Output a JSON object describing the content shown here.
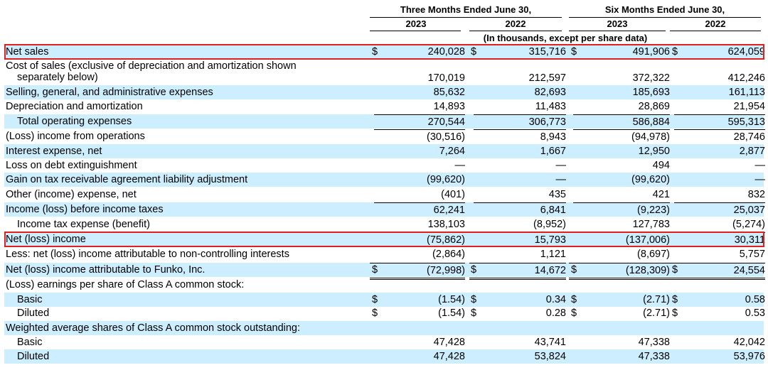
{
  "header": {
    "three_months": "Three Months Ended June 30,",
    "six_months": "Six Months Ended June 30,",
    "years": [
      "2023",
      "2022",
      "2023",
      "2022"
    ],
    "units_note": "(In thousands, except per share data)"
  },
  "rows": [
    {
      "label": "Net sales",
      "values": [
        "240,028",
        "315,716",
        "491,906",
        "624,059"
      ],
      "dollar": [
        "$",
        "$",
        "$",
        "$"
      ]
    },
    {
      "label_line1": "Cost of sales (exclusive of depreciation and amortization shown",
      "label_line2": "separately below)",
      "values": [
        "170,019",
        "212,597",
        "372,322",
        "412,246"
      ]
    },
    {
      "label": "Selling, general, and administrative expenses",
      "values": [
        "85,632",
        "82,693",
        "185,693",
        "161,113"
      ]
    },
    {
      "label": "Depreciation and amortization",
      "values": [
        "14,893",
        "11,483",
        "28,869",
        "21,954"
      ]
    },
    {
      "label": "Total operating expenses",
      "values": [
        "270,544",
        "306,773",
        "586,884",
        "595,313"
      ]
    },
    {
      "label": "(Loss) income from operations",
      "values": [
        "(30,516)",
        "8,943",
        "(94,978)",
        "28,746"
      ]
    },
    {
      "label": "Interest expense, net",
      "values": [
        "7,264",
        "1,667",
        "12,950",
        "2,877"
      ]
    },
    {
      "label": "Loss on debt extinguishment",
      "values": [
        "—",
        "—",
        "494",
        "—"
      ]
    },
    {
      "label": "Gain on tax receivable agreement liability adjustment",
      "values": [
        "(99,620)",
        "—",
        "(99,620)",
        "—"
      ]
    },
    {
      "label": "Other (income) expense, net",
      "values": [
        "(401)",
        "435",
        "421",
        "832"
      ]
    },
    {
      "label": "Income (loss) before income taxes",
      "values": [
        "62,241",
        "6,841",
        "(9,223)",
        "25,037"
      ]
    },
    {
      "label": "Income tax expense (benefit)",
      "values": [
        "138,103",
        "(8,952)",
        "127,783",
        "(5,274)"
      ]
    },
    {
      "label": "Net (loss) income",
      "values": [
        "(75,862)",
        "15,793",
        "(137,006)",
        "30,311"
      ]
    },
    {
      "label": "Less: net (loss) income attributable to non-controlling interests",
      "values": [
        "(2,864)",
        "1,121",
        "(8,697)",
        "5,757"
      ]
    },
    {
      "label": "Net (loss) income attributable to Funko, Inc.",
      "values": [
        "(72,998)",
        "14,672",
        "(128,309)",
        "24,554"
      ],
      "dollar": [
        "$",
        "$",
        "$",
        "$"
      ]
    },
    {
      "label": "(Loss) earnings per share of Class A common stock:"
    },
    {
      "label": "Basic",
      "values": [
        "(1.54)",
        "0.34",
        "(2.71)",
        "0.58"
      ],
      "dollar": [
        "$",
        "$",
        "$",
        "$"
      ]
    },
    {
      "label": "Diluted",
      "values": [
        "(1.54)",
        "0.28",
        "(2.71)",
        "0.53"
      ],
      "dollar": [
        "$",
        "$",
        "$",
        "$"
      ]
    },
    {
      "label": "Weighted average shares of Class A common stock outstanding:"
    },
    {
      "label": "Basic",
      "values": [
        "47,428",
        "43,741",
        "47,338",
        "42,042"
      ]
    },
    {
      "label": "Diluted",
      "values": [
        "47,428",
        "53,824",
        "47,338",
        "53,976"
      ]
    }
  ]
}
